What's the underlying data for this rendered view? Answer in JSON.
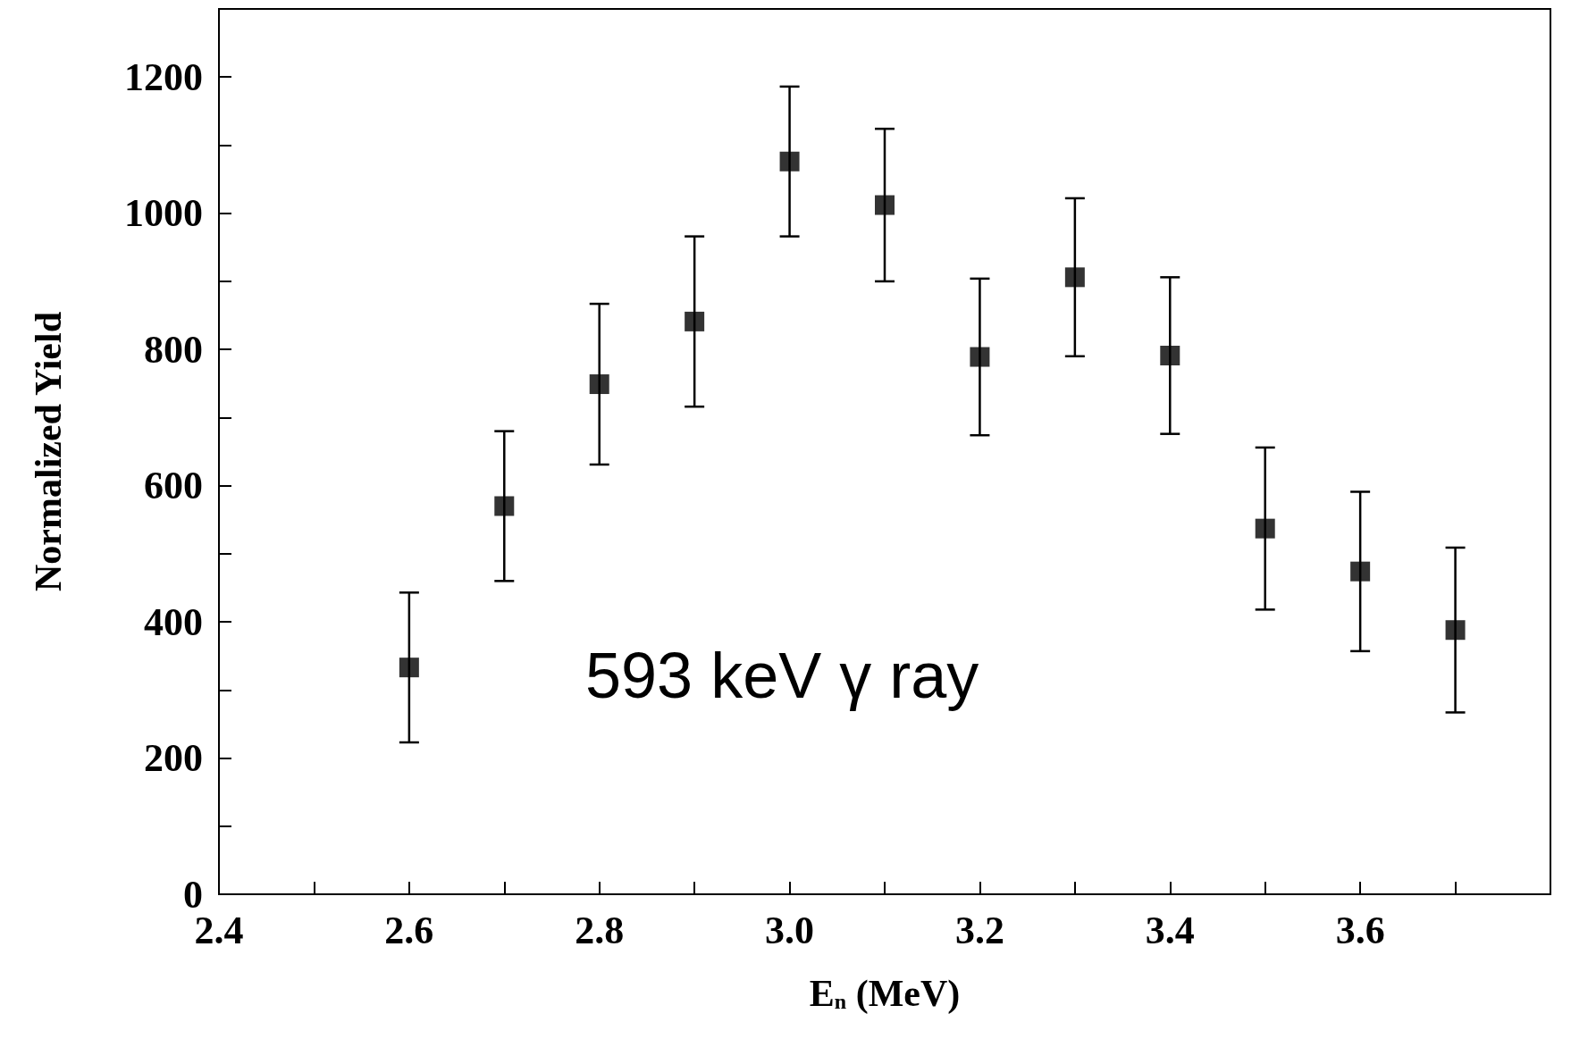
{
  "chart_data": {
    "type": "scatter",
    "xlabel": "E$_{n}$ (MeV)",
    "ylabel": "Normalized Yield",
    "x": [
      2.6,
      2.7,
      2.8,
      2.9,
      3.0,
      3.1,
      3.2,
      3.3,
      3.4,
      3.5,
      3.6,
      3.7
    ],
    "series": [
      {
        "color": "#000000",
        "values": [
          333,
          570,
          749,
          841,
          1076,
          1012,
          789,
          906,
          791,
          537,
          474,
          388
        ],
        "errors": [
          110,
          110,
          118,
          125,
          110,
          112,
          115,
          116,
          115,
          119,
          117,
          121
        ]
      }
    ],
    "xlim": [
      2.4,
      3.8
    ],
    "xticks": [
      2.4,
      {
        "value": 2.5,
        "label": null
      },
      2.6,
      {
        "value": 2.7,
        "label": null
      },
      2.8,
      {
        "value": 2.9,
        "label": null
      },
      {
        "value": 3.0,
        "label": "3.0"
      },
      {
        "value": 3.1,
        "label": null
      },
      3.2,
      {
        "value": 3.3,
        "label": null
      },
      3.4,
      {
        "value": 3.5,
        "label": null
      },
      3.6,
      {
        "value": 3.7,
        "label": null
      }
    ],
    "ylim": [
      0,
      1300
    ],
    "yticks": [
      0,
      {
        "value": 100,
        "label": null
      },
      200,
      {
        "value": 300,
        "label": null
      },
      400,
      {
        "value": 500,
        "label": null
      },
      600,
      {
        "value": 700,
        "label": null
      },
      800,
      {
        "value": 900,
        "label": null
      },
      1000,
      {
        "value": 1100,
        "label": null
      },
      1200
    ],
    "annotations": [
      "593 keV γ ray"
    ],
    "marker": "square",
    "grid": false
  }
}
